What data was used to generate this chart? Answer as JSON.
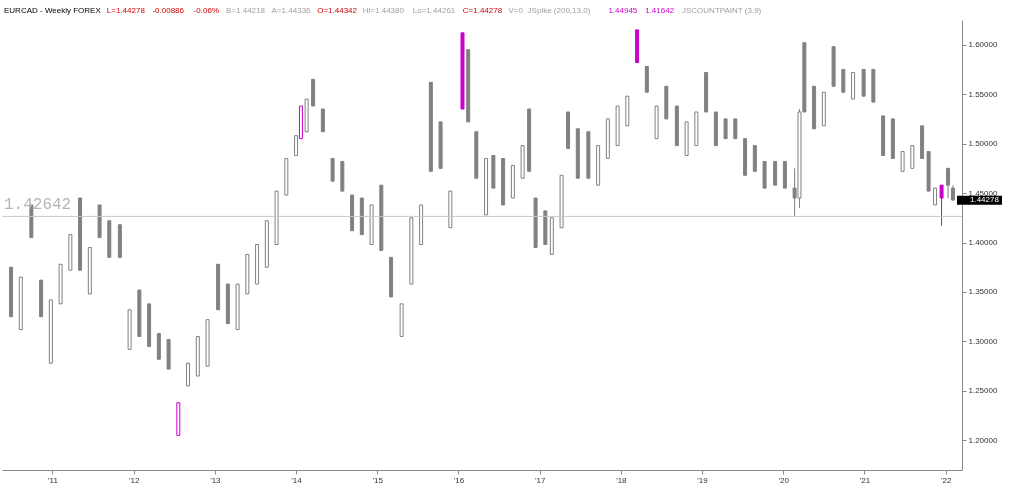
{
  "chart_data": {
    "type": "candlestick",
    "title": "EURCAD - Weekly  FOREX",
    "annotations": [
      "L=1.44278",
      "-0.00886",
      "-0.06%",
      "B=1.44218",
      "A=1.44336",
      "O=1.44342",
      "Hi=1.44380",
      "Lo=1.44261",
      "C=1.44278",
      "V=0",
      "JSpike (200,13,0)",
      "1.44945",
      "1.41642",
      "JSCOUNTPAINT (3,9)",
      {
        "text": "1.44278",
        "x": 2022.14,
        "y": 1.44278
      }
    ],
    "x": [
      2010.49,
      2010.61,
      2010.74,
      2010.86,
      2010.98,
      2011.1,
      2011.22,
      2011.34,
      2011.46,
      2011.58,
      2011.7,
      2011.83,
      2011.95,
      2012.07,
      2012.19,
      2012.31,
      2012.43,
      2012.55,
      2012.67,
      2012.79,
      2012.91,
      2013.04,
      2013.16,
      2013.28,
      2013.4,
      2013.52,
      2013.64,
      2013.76,
      2013.88,
      2014.0,
      2014.06,
      2014.13,
      2014.21,
      2014.33,
      2014.45,
      2014.57,
      2014.69,
      2014.81,
      2014.93,
      2015.05,
      2015.17,
      2015.3,
      2015.42,
      2015.54,
      2015.66,
      2015.78,
      2015.9,
      2016.05,
      2016.12,
      2016.22,
      2016.34,
      2016.43,
      2016.55,
      2016.67,
      2016.79,
      2016.87,
      2016.95,
      2017.07,
      2017.15,
      2017.27,
      2017.35,
      2017.47,
      2017.6,
      2017.72,
      2017.84,
      2017.96,
      2018.08,
      2018.2,
      2018.32,
      2018.44,
      2018.56,
      2018.69,
      2018.81,
      2018.93,
      2019.05,
      2019.17,
      2019.29,
      2019.41,
      2019.53,
      2019.65,
      2019.77,
      2019.9,
      2020.02,
      2020.14,
      2020.2,
      2020.26,
      2020.38,
      2020.5,
      2020.62,
      2020.74,
      2020.86,
      2020.99,
      2021.11,
      2021.23,
      2021.35,
      2021.47,
      2021.59,
      2021.71,
      2021.79,
      2021.87,
      2021.95,
      2022.03,
      2022.09
    ],
    "ohlc": [
      [
        1.375,
        1.375,
        1.325,
        1.325
      ],
      [
        1.312,
        1.365,
        1.312,
        1.365
      ],
      [
        1.438,
        1.438,
        1.405,
        1.405
      ],
      [
        1.362,
        1.362,
        1.325,
        1.325
      ],
      [
        1.278,
        1.342,
        1.278,
        1.342
      ],
      [
        1.338,
        1.378,
        1.338,
        1.378
      ],
      [
        1.372,
        1.408,
        1.372,
        1.408
      ],
      [
        1.445,
        1.445,
        1.372,
        1.372
      ],
      [
        1.348,
        1.395,
        1.348,
        1.395
      ],
      [
        1.438,
        1.438,
        1.405,
        1.405
      ],
      [
        1.422,
        1.422,
        1.385,
        1.385
      ],
      [
        1.418,
        1.418,
        1.385,
        1.385
      ],
      [
        1.292,
        1.332,
        1.292,
        1.332
      ],
      [
        1.352,
        1.352,
        1.305,
        1.305
      ],
      [
        1.338,
        1.338,
        1.295,
        1.295
      ],
      [
        1.308,
        1.308,
        1.282,
        1.282
      ],
      [
        1.302,
        1.302,
        1.272,
        1.272
      ],
      [
        1.205,
        1.238,
        1.205,
        1.238
      ],
      [
        1.255,
        1.278,
        1.255,
        1.278
      ],
      [
        1.265,
        1.305,
        1.265,
        1.305
      ],
      [
        1.275,
        1.322,
        1.275,
        1.322
      ],
      [
        1.378,
        1.378,
        1.332,
        1.332
      ],
      [
        1.358,
        1.358,
        1.318,
        1.318
      ],
      [
        1.312,
        1.358,
        1.312,
        1.358
      ],
      [
        1.348,
        1.388,
        1.348,
        1.388
      ],
      [
        1.358,
        1.398,
        1.358,
        1.398
      ],
      [
        1.375,
        1.422,
        1.375,
        1.422
      ],
      [
        1.398,
        1.452,
        1.398,
        1.452
      ],
      [
        1.448,
        1.485,
        1.448,
        1.485
      ],
      [
        1.488,
        1.508,
        1.488,
        1.508
      ],
      [
        1.505,
        1.538,
        1.505,
        1.538
      ],
      [
        1.512,
        1.545,
        1.512,
        1.545
      ],
      [
        1.565,
        1.565,
        1.538,
        1.538
      ],
      [
        1.535,
        1.535,
        1.512,
        1.512
      ],
      [
        1.485,
        1.485,
        1.462,
        1.462
      ],
      [
        1.482,
        1.482,
        1.452,
        1.452
      ],
      [
        1.448,
        1.448,
        1.412,
        1.412
      ],
      [
        1.445,
        1.445,
        1.408,
        1.408
      ],
      [
        1.398,
        1.438,
        1.398,
        1.438
      ],
      [
        1.458,
        1.458,
        1.392,
        1.392
      ],
      [
        1.385,
        1.385,
        1.345,
        1.345
      ],
      [
        1.305,
        1.338,
        1.305,
        1.338
      ],
      [
        1.358,
        1.425,
        1.358,
        1.425
      ],
      [
        1.398,
        1.438,
        1.398,
        1.438
      ],
      [
        1.562,
        1.562,
        1.472,
        1.472
      ],
      [
        1.522,
        1.522,
        1.475,
        1.475
      ],
      [
        1.415,
        1.452,
        1.415,
        1.452
      ],
      [
        1.612,
        1.612,
        1.535,
        1.535
      ],
      [
        1.595,
        1.595,
        1.522,
        1.522
      ],
      [
        1.512,
        1.512,
        1.465,
        1.465
      ],
      [
        1.428,
        1.485,
        1.428,
        1.485
      ],
      [
        1.488,
        1.488,
        1.455,
        1.455
      ],
      [
        1.485,
        1.485,
        1.438,
        1.438
      ],
      [
        1.445,
        1.478,
        1.445,
        1.478
      ],
      [
        1.465,
        1.498,
        1.465,
        1.498
      ],
      [
        1.535,
        1.535,
        1.472,
        1.472
      ],
      [
        1.445,
        1.445,
        1.395,
        1.395
      ],
      [
        1.432,
        1.432,
        1.398,
        1.398
      ],
      [
        1.388,
        1.425,
        1.388,
        1.425
      ],
      [
        1.415,
        1.468,
        1.415,
        1.468
      ],
      [
        1.532,
        1.532,
        1.495,
        1.495
      ],
      [
        1.515,
        1.515,
        1.465,
        1.465
      ],
      [
        1.512,
        1.512,
        1.465,
        1.465
      ],
      [
        1.458,
        1.498,
        1.458,
        1.498
      ],
      [
        1.485,
        1.525,
        1.485,
        1.525
      ],
      [
        1.498,
        1.538,
        1.498,
        1.538
      ],
      [
        1.518,
        1.548,
        1.518,
        1.548
      ],
      [
        1.615,
        1.615,
        1.582,
        1.582
      ],
      [
        1.578,
        1.578,
        1.552,
        1.552
      ],
      [
        1.505,
        1.538,
        1.505,
        1.538
      ],
      [
        1.558,
        1.558,
        1.525,
        1.525
      ],
      [
        1.538,
        1.538,
        1.498,
        1.498
      ],
      [
        1.488,
        1.522,
        1.488,
        1.522
      ],
      [
        1.498,
        1.532,
        1.498,
        1.532
      ],
      [
        1.572,
        1.572,
        1.532,
        1.532
      ],
      [
        1.532,
        1.532,
        1.498,
        1.498
      ],
      [
        1.525,
        1.525,
        1.505,
        1.505
      ],
      [
        1.525,
        1.525,
        1.505,
        1.505
      ],
      [
        1.505,
        1.505,
        1.468,
        1.468
      ],
      [
        1.498,
        1.498,
        1.472,
        1.472
      ],
      [
        1.482,
        1.482,
        1.455,
        1.455
      ],
      [
        1.482,
        1.482,
        1.458,
        1.458
      ],
      [
        1.482,
        1.482,
        1.455,
        1.455
      ],
      [
        1.455,
        1.475,
        1.427,
        1.445
      ],
      [
        1.445,
        1.535,
        1.435,
        1.532
      ],
      [
        1.602,
        1.602,
        1.532,
        1.532
      ],
      [
        1.558,
        1.558,
        1.515,
        1.515
      ],
      [
        1.518,
        1.552,
        1.518,
        1.552
      ],
      [
        1.598,
        1.598,
        1.558,
        1.558
      ],
      [
        1.575,
        1.575,
        1.552,
        1.552
      ],
      [
        1.545,
        1.572,
        1.545,
        1.572
      ],
      [
        1.575,
        1.575,
        1.548,
        1.548
      ],
      [
        1.575,
        1.575,
        1.542,
        1.542
      ],
      [
        1.528,
        1.528,
        1.488,
        1.488
      ],
      [
        1.525,
        1.525,
        1.485,
        1.485
      ],
      [
        1.472,
        1.492,
        1.472,
        1.492
      ],
      [
        1.475,
        1.498,
        1.475,
        1.498
      ],
      [
        1.518,
        1.518,
        1.485,
        1.485
      ],
      [
        1.492,
        1.492,
        1.452,
        1.452
      ],
      [
        1.438,
        1.455,
        1.438,
        1.455
      ],
      [
        1.458,
        1.458,
        1.417,
        1.445
      ],
      [
        1.475,
        1.475,
        1.445,
        1.458
      ],
      [
        1.455,
        1.458,
        1.442,
        1.443
      ]
    ],
    "colors": [
      "#808080",
      "#808080",
      "#808080",
      "#808080",
      "#808080",
      "#808080",
      "#808080",
      "#808080",
      "#808080",
      "#808080",
      "#808080",
      "#808080",
      "#808080",
      "#808080",
      "#808080",
      "#808080",
      "#808080",
      "#cc00cc",
      "#808080",
      "#808080",
      "#808080",
      "#808080",
      "#808080",
      "#808080",
      "#808080",
      "#808080",
      "#808080",
      "#808080",
      "#808080",
      "#808080",
      "#cc00cc",
      "#808080",
      "#808080",
      "#808080",
      "#808080",
      "#808080",
      "#808080",
      "#808080",
      "#808080",
      "#808080",
      "#808080",
      "#808080",
      "#808080",
      "#808080",
      "#808080",
      "#808080",
      "#808080",
      "#cc00cc",
      "#808080",
      "#808080",
      "#808080",
      "#808080",
      "#808080",
      "#808080",
      "#808080",
      "#808080",
      "#808080",
      "#808080",
      "#808080",
      "#808080",
      "#808080",
      "#808080",
      "#808080",
      "#808080",
      "#808080",
      "#808080",
      "#808080",
      "#cc00cc",
      "#808080",
      "#808080",
      "#808080",
      "#808080",
      "#808080",
      "#808080",
      "#808080",
      "#808080",
      "#808080",
      "#808080",
      "#808080",
      "#808080",
      "#808080",
      "#808080",
      "#808080",
      "#808080",
      "#808080",
      "#808080",
      "#808080",
      "#808080",
      "#808080",
      "#808080",
      "#808080",
      "#808080",
      "#808080",
      "#808080",
      "#808080",
      "#808080",
      "#808080",
      "#808080",
      "#808080",
      "#808080",
      "#cc00cc",
      "#808080",
      "#808080"
    ],
    "xlim": [
      2010.44,
      2022.14
    ],
    "xticks": [
      {
        "value": 2011,
        "label": "'11"
      },
      {
        "value": 2012,
        "label": "'12"
      },
      {
        "value": 2013,
        "label": "'13"
      },
      {
        "value": 2014,
        "label": "'14"
      },
      {
        "value": 2015,
        "label": "'15"
      },
      {
        "value": 2016,
        "label": "'16"
      },
      {
        "value": 2017,
        "label": "'17"
      },
      {
        "value": 2018,
        "label": "'18"
      },
      {
        "value": 2019,
        "label": "'19"
      },
      {
        "value": 2020,
        "label": "'20"
      },
      {
        "value": 2021,
        "label": "'21"
      },
      {
        "value": 2022,
        "label": "'22"
      }
    ],
    "ylim": [
      1.17,
      1.625
    ],
    "yticks": [
      {
        "value": 1.2,
        "label": "1.20000"
      },
      {
        "value": 1.25,
        "label": "1.25000"
      },
      {
        "value": 1.3,
        "label": "1.30000"
      },
      {
        "value": 1.35,
        "label": "1.35000"
      },
      {
        "value": 1.4,
        "label": "1.40000"
      },
      {
        "value": 1.45,
        "label": "1.45000"
      },
      {
        "value": 1.5,
        "label": "1.50000"
      },
      {
        "value": 1.55,
        "label": "1.55000"
      },
      {
        "value": 1.6,
        "label": "1.60000"
      }
    ],
    "ref_lines": [
      {
        "axis": "y",
        "value": 1.42642,
        "label": "1.42642",
        "color": "#c8c8c8"
      }
    ],
    "grid": false
  }
}
